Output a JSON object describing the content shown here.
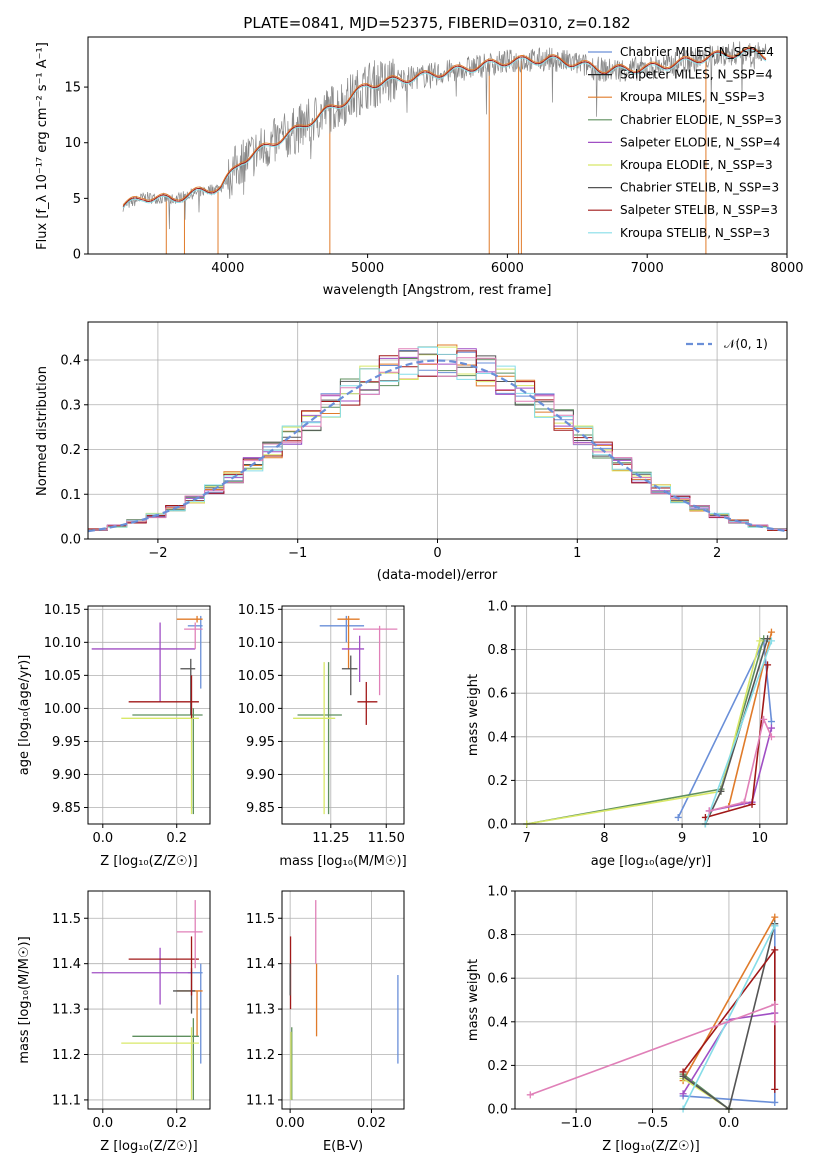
{
  "palette": [
    "#6a8fd8",
    "#e07b2a",
    "#5e8f5e",
    "#a04fc4",
    "#d8e868",
    "#555555",
    "#a01818",
    "#86dde8",
    "#e080b8",
    "#40a0a0"
  ],
  "spectrum": {
    "title": "PLATE=0841, MJD=52375, FIBERID=0310, z=0.182",
    "xlabel": "wavelength [Angstrom, rest frame]",
    "ylabel": "Flux [f_λ 10⁻¹⁷ erg cm⁻² s⁻¹ A⁻¹]",
    "xlim": [
      3000,
      8000
    ],
    "ylim": [
      0,
      19.5
    ],
    "xticks": [
      "4000",
      "5000",
      "6000",
      "7000",
      "8000"
    ],
    "yticks": [
      "0",
      "5",
      "10",
      "15"
    ],
    "legend": [
      {
        "label": "Chabrier MILES, N_SSP=4",
        "color": "#6a8fd8"
      },
      {
        "label": "Salpeter MILES, N_SSP=4",
        "color": "#222222"
      },
      {
        "label": "Kroupa MILES, N_SSP=3",
        "color": "#e07b2a"
      },
      {
        "label": "Chabrier ELODIE, N_SSP=3",
        "color": "#5e8f5e"
      },
      {
        "label": "Salpeter ELODIE, N_SSP=4",
        "color": "#a04fc4"
      },
      {
        "label": "Kroupa ELODIE, N_SSP=3",
        "color": "#d8e868"
      },
      {
        "label": "Chabrier STELIB, N_SSP=3",
        "color": "#555555"
      },
      {
        "label": "Salpeter STELIB, N_SSP=3",
        "color": "#a01818"
      },
      {
        "label": "Kroupa STELIB, N_SSP=3",
        "color": "#86dde8"
      }
    ],
    "continuum": [
      [
        3250,
        4.3
      ],
      [
        3400,
        5.1
      ],
      [
        3600,
        4.9
      ],
      [
        3800,
        5.6
      ],
      [
        3950,
        6.0
      ],
      [
        4100,
        8.4
      ],
      [
        4300,
        9.8
      ],
      [
        4500,
        11.2
      ],
      [
        4700,
        12.8
      ],
      [
        4850,
        13.8
      ],
      [
        5000,
        15.2
      ],
      [
        5200,
        15.6
      ],
      [
        5500,
        16.2
      ],
      [
        5800,
        16.9
      ],
      [
        6000,
        17.3
      ],
      [
        6300,
        17.5
      ],
      [
        6500,
        17.1
      ],
      [
        6700,
        16.5
      ],
      [
        7000,
        16.7
      ],
      [
        7200,
        17.1
      ],
      [
        7400,
        17.6
      ],
      [
        7600,
        18.0
      ],
      [
        7800,
        18.2
      ],
      [
        7850,
        17.8
      ]
    ],
    "drops": [
      3560,
      3690,
      3930,
      4730,
      5870,
      6080,
      6100,
      7420
    ]
  },
  "residuals": {
    "xlabel": "(data-model)/error",
    "ylabel": "Normed distribution",
    "xlim": [
      -2.5,
      2.5
    ],
    "ylim": [
      0,
      0.485
    ],
    "xticks": [
      "−2",
      "−1",
      "0",
      "1",
      "2"
    ],
    "yticks": [
      "0.0",
      "0.1",
      "0.2",
      "0.3",
      "0.4"
    ],
    "legend_label": "𝒩(0, 1)",
    "legend_color": "#6a8fd8"
  },
  "panels": {
    "age_vs_Z": {
      "xlabel": "Z [log₁₀(Z/Z☉)]",
      "ylabel": "age  [log₁₀(age/yr)]",
      "xlim": [
        -0.04,
        0.29
      ],
      "ylim": [
        9.825,
        10.155
      ],
      "xticks": [
        {
          "v": 0.0,
          "t": "0.0"
        },
        {
          "v": 0.2,
          "t": "0.2"
        }
      ],
      "yticks": [
        {
          "v": 9.85,
          "t": "9.85"
        },
        {
          "v": 9.9,
          "t": "9.90"
        },
        {
          "v": 9.95,
          "t": "9.95"
        },
        {
          "v": 10.0,
          "t": "10.00"
        },
        {
          "v": 10.05,
          "t": "10.05"
        },
        {
          "v": 10.1,
          "t": "10.10"
        },
        {
          "v": 10.15,
          "t": "10.15"
        }
      ],
      "points": [
        {
          "x": 0.265,
          "xl": 0.23,
          "xh": 0.27,
          "y": 10.125,
          "yl": 10.03,
          "yh": 10.14,
          "c": "#6a8fd8"
        },
        {
          "x": 0.255,
          "xl": 0.2,
          "xh": 0.27,
          "y": 10.135,
          "yl": 10.13,
          "yh": 10.14,
          "c": "#e07b2a"
        },
        {
          "x": 0.245,
          "xl": 0.08,
          "xh": 0.27,
          "y": 9.99,
          "yl": 9.84,
          "yh": 10.0,
          "c": "#5e8f5e"
        },
        {
          "x": 0.155,
          "xl": -0.03,
          "xh": 0.25,
          "y": 10.09,
          "yl": 10.01,
          "yh": 10.13,
          "c": "#a04fc4"
        },
        {
          "x": 0.24,
          "xl": 0.05,
          "xh": 0.26,
          "y": 9.985,
          "yl": 9.84,
          "yh": 9.99,
          "c": "#d8e868"
        },
        {
          "x": 0.238,
          "xl": 0.21,
          "xh": 0.25,
          "y": 10.06,
          "yl": 9.99,
          "yh": 10.075,
          "c": "#555555"
        },
        {
          "x": 0.24,
          "xl": 0.07,
          "xh": 0.26,
          "y": 10.01,
          "yl": 9.985,
          "yh": 10.05,
          "c": "#a01818"
        },
        {
          "x": 0.25,
          "xl": 0.22,
          "xh": 0.27,
          "y": 10.12,
          "yl": 10.09,
          "yh": 10.13,
          "c": "#e080b8"
        }
      ]
    },
    "age_vs_mass": {
      "xlabel": "mass [log₁₀(M/M☉)]",
      "ylabel": "",
      "xlim": [
        11.03,
        11.58
      ],
      "ylim": [
        9.825,
        10.155
      ],
      "xticks": [
        {
          "v": 11.25,
          "t": "11.25"
        },
        {
          "v": 11.5,
          "t": "11.50"
        }
      ],
      "yticks": [
        {
          "v": 9.85,
          "t": "9.85"
        },
        {
          "v": 9.9,
          "t": "9.90"
        },
        {
          "v": 9.95,
          "t": "9.95"
        },
        {
          "v": 10.0,
          "t": "10.00"
        },
        {
          "v": 10.05,
          "t": "10.05"
        },
        {
          "v": 10.1,
          "t": "10.10"
        },
        {
          "v": 10.15,
          "t": "10.15"
        }
      ],
      "points": [
        {
          "x": 11.32,
          "xl": 11.2,
          "xh": 11.4,
          "y": 10.125,
          "yl": 10.1,
          "yh": 10.14,
          "c": "#6a8fd8"
        },
        {
          "x": 11.33,
          "xl": 11.28,
          "xh": 11.38,
          "y": 10.135,
          "yl": 10.06,
          "yh": 10.14,
          "c": "#e07b2a"
        },
        {
          "x": 11.24,
          "xl": 11.1,
          "xh": 11.3,
          "y": 9.99,
          "yl": 9.84,
          "yh": 10.07,
          "c": "#5e8f5e"
        },
        {
          "x": 11.38,
          "xl": 11.3,
          "xh": 11.4,
          "y": 10.09,
          "yl": 10.04,
          "yh": 10.11,
          "c": "#a04fc4"
        },
        {
          "x": 11.22,
          "xl": 11.08,
          "xh": 11.27,
          "y": 9.985,
          "yl": 9.84,
          "yh": 10.07,
          "c": "#d8e868"
        },
        {
          "x": 11.34,
          "xl": 11.3,
          "xh": 11.37,
          "y": 10.06,
          "yl": 10.02,
          "yh": 10.08,
          "c": "#555555"
        },
        {
          "x": 11.41,
          "xl": 11.37,
          "xh": 11.46,
          "y": 10.01,
          "yl": 9.975,
          "yh": 10.04,
          "c": "#a01818"
        },
        {
          "x": 11.47,
          "xl": 11.35,
          "xh": 11.55,
          "y": 10.12,
          "yl": 10.02,
          "yh": 10.125,
          "c": "#e080b8"
        }
      ]
    },
    "weight_vs_age": {
      "xlabel": "age  [log₁₀(age/yr)]",
      "ylabel": "mass weight",
      "xlim": [
        6.85,
        10.35
      ],
      "ylim": [
        0,
        1.0
      ],
      "xticks": [
        {
          "v": 7,
          "t": "7"
        },
        {
          "v": 8,
          "t": "8"
        },
        {
          "v": 9,
          "t": "9"
        },
        {
          "v": 10,
          "t": "10"
        }
      ],
      "yticks": [
        {
          "v": 0,
          "t": "0.0"
        },
        {
          "v": 0.2,
          "t": "0.2"
        },
        {
          "v": 0.4,
          "t": "0.4"
        },
        {
          "v": 0.6,
          "t": "0.6"
        },
        {
          "v": 0.8,
          "t": "0.8"
        },
        {
          "v": 1.0,
          "t": "1.0"
        }
      ],
      "series": [
        {
          "c": "#6a8fd8",
          "pts": [
            [
              8.95,
              0.03
            ],
            [
              10.05,
              0.84
            ],
            [
              10.15,
              0.47
            ]
          ]
        },
        {
          "c": "#e07b2a",
          "pts": [
            [
              9.6,
              0.08
            ],
            [
              10.15,
              0.88
            ]
          ]
        },
        {
          "c": "#5e8f5e",
          "pts": [
            [
              7.0,
              0.0
            ],
            [
              9.5,
              0.16
            ],
            [
              10.05,
              0.85
            ]
          ]
        },
        {
          "c": "#a04fc4",
          "pts": [
            [
              9.35,
              0.06
            ],
            [
              9.9,
              0.1
            ],
            [
              10.15,
              0.44
            ]
          ]
        },
        {
          "c": "#d8e868",
          "pts": [
            [
              7.0,
              0.0
            ],
            [
              9.5,
              0.15
            ],
            [
              10.0,
              0.84
            ]
          ]
        },
        {
          "c": "#555555",
          "pts": [
            [
              9.3,
              0.0
            ],
            [
              9.5,
              0.15
            ],
            [
              10.1,
              0.85
            ]
          ]
        },
        {
          "c": "#a01818",
          "pts": [
            [
              9.3,
              0.03
            ],
            [
              9.9,
              0.09
            ],
            [
              10.1,
              0.73
            ]
          ]
        },
        {
          "c": "#86dde8",
          "pts": [
            [
              9.3,
              0.0
            ],
            [
              10.15,
              0.84
            ]
          ]
        },
        {
          "c": "#e080b8",
          "pts": [
            [
              9.35,
              0.06
            ],
            [
              9.8,
              0.1
            ],
            [
              10.05,
              0.48
            ],
            [
              10.15,
              0.4
            ]
          ]
        }
      ]
    },
    "mass_vs_Z": {
      "xlabel": "Z [log₁₀(Z/Z☉)]",
      "ylabel": "mass [log₁₀(M/M☉)]",
      "xlim": [
        -0.04,
        0.29
      ],
      "ylim": [
        11.08,
        11.56
      ],
      "xticks": [
        {
          "v": 0.0,
          "t": "0.0"
        },
        {
          "v": 0.2,
          "t": "0.2"
        }
      ],
      "yticks": [
        {
          "v": 11.1,
          "t": "11.1"
        },
        {
          "v": 11.2,
          "t": "11.2"
        },
        {
          "v": 11.3,
          "t": "11.3"
        },
        {
          "v": 11.4,
          "t": "11.4"
        },
        {
          "v": 11.5,
          "t": "11.5"
        }
      ],
      "points": [
        {
          "x": 0.265,
          "xl": 0.23,
          "xh": 0.27,
          "y": 11.38,
          "yl": 11.18,
          "yh": 11.4,
          "c": "#6a8fd8"
        },
        {
          "x": 0.255,
          "xl": 0.2,
          "xh": 0.27,
          "y": 11.34,
          "yl": 11.24,
          "yh": 11.34,
          "c": "#e07b2a"
        },
        {
          "x": 0.245,
          "xl": 0.08,
          "xh": 0.26,
          "y": 11.24,
          "yl": 11.1,
          "yh": 11.28,
          "c": "#5e8f5e"
        },
        {
          "x": 0.155,
          "xl": -0.03,
          "xh": 0.24,
          "y": 11.38,
          "yl": 11.31,
          "yh": 11.435,
          "c": "#a04fc4"
        },
        {
          "x": 0.24,
          "xl": 0.05,
          "xh": 0.26,
          "y": 11.225,
          "yl": 11.1,
          "yh": 11.26,
          "c": "#d8e868"
        },
        {
          "x": 0.24,
          "xl": 0.19,
          "xh": 0.25,
          "y": 11.34,
          "yl": 11.29,
          "yh": 11.39,
          "c": "#555555"
        },
        {
          "x": 0.24,
          "xl": 0.07,
          "xh": 0.26,
          "y": 11.41,
          "yl": 11.33,
          "yh": 11.46,
          "c": "#a01818"
        },
        {
          "x": 0.25,
          "xl": 0.2,
          "xh": 0.27,
          "y": 11.47,
          "yl": 11.39,
          "yh": 11.54,
          "c": "#e080b8"
        }
      ]
    },
    "mass_vs_EBV": {
      "xlabel": "E(B-V)",
      "ylabel": "",
      "xlim": [
        -0.002,
        0.028
      ],
      "ylim": [
        11.08,
        11.56
      ],
      "xticks": [
        {
          "v": 0.0,
          "t": "0.00"
        },
        {
          "v": 0.02,
          "t": "0.02"
        }
      ],
      "yticks": [
        {
          "v": 11.1,
          "t": "11.1"
        },
        {
          "v": 11.2,
          "t": "11.2"
        },
        {
          "v": 11.3,
          "t": "11.3"
        },
        {
          "v": 11.4,
          "t": "11.4"
        },
        {
          "v": 11.5,
          "t": "11.5"
        }
      ],
      "points": [
        {
          "x": 0.0265,
          "yl": 11.18,
          "yh": 11.375,
          "c": "#6a8fd8"
        },
        {
          "x": 0.0065,
          "yl": 11.24,
          "yh": 11.4,
          "c": "#e07b2a"
        },
        {
          "x": 0.0004,
          "yl": 11.1,
          "yh": 11.26,
          "c": "#5e8f5e"
        },
        {
          "x": 0.0002,
          "yl": 11.1,
          "yh": 11.25,
          "c": "#d8e868"
        },
        {
          "x": 0.0001,
          "yl": 11.3,
          "yh": 11.46,
          "c": "#a01818"
        },
        {
          "x": 0.0,
          "yl": 11.33,
          "yh": 11.4,
          "c": "#555555"
        },
        {
          "x": 0.0063,
          "yl": 11.4,
          "yh": 11.54,
          "c": "#e080b8"
        }
      ]
    },
    "weight_vs_Z": {
      "xlabel": "Z [log₁₀(Z/Z☉)]",
      "ylabel": "mass weight",
      "xlim": [
        -1.4,
        0.38
      ],
      "ylim": [
        0,
        1.0
      ],
      "xticks": [
        {
          "v": -1.0,
          "t": "−1.0"
        },
        {
          "v": -0.5,
          "t": "−0.5"
        },
        {
          "v": 0.0,
          "t": "0.0"
        }
      ],
      "yticks": [
        {
          "v": 0,
          "t": "0.0"
        },
        {
          "v": 0.2,
          "t": "0.2"
        },
        {
          "v": 0.4,
          "t": "0.4"
        },
        {
          "v": 0.6,
          "t": "0.6"
        },
        {
          "v": 0.8,
          "t": "0.8"
        },
        {
          "v": 1.0,
          "t": "1.0"
        }
      ],
      "series": [
        {
          "c": "#6a8fd8",
          "pts": [
            [
              -0.3,
              0.06
            ],
            [
              0.3,
              0.03
            ],
            [
              0.3,
              0.84
            ]
          ]
        },
        {
          "c": "#e07b2a",
          "pts": [
            [
              -0.3,
              0.13
            ],
            [
              0.3,
              0.88
            ]
          ]
        },
        {
          "c": "#5e8f5e",
          "pts": [
            [
              -0.3,
              0.16
            ],
            [
              0.0,
              0.0
            ]
          ]
        },
        {
          "c": "#a04fc4",
          "pts": [
            [
              -0.3,
              0.07
            ],
            [
              0.0,
              0.41
            ],
            [
              0.3,
              0.44
            ]
          ]
        },
        {
          "c": "#d8e868",
          "pts": [
            [
              -0.3,
              0.14
            ],
            [
              0.0,
              0.0
            ]
          ]
        },
        {
          "c": "#555555",
          "pts": [
            [
              -0.3,
              0.15
            ],
            [
              0.0,
              0.0
            ],
            [
              0.3,
              0.85
            ]
          ]
        },
        {
          "c": "#a01818",
          "pts": [
            [
              -0.3,
              0.17
            ],
            [
              0.3,
              0.73
            ],
            [
              0.3,
              0.09
            ]
          ]
        },
        {
          "c": "#86dde8",
          "pts": [
            [
              -0.3,
              0.0
            ],
            [
              0.3,
              0.84
            ]
          ]
        },
        {
          "c": "#e080b8",
          "pts": [
            [
              -1.3,
              0.065
            ],
            [
              0.3,
              0.48
            ],
            [
              0.3,
              0.4
            ]
          ]
        }
      ]
    }
  }
}
